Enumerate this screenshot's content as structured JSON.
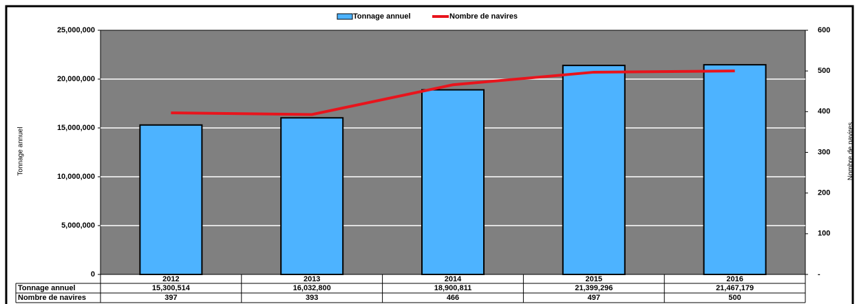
{
  "chart_data": {
    "type": "bar_line",
    "categories": [
      "2012",
      "2013",
      "2014",
      "2015",
      "2016"
    ],
    "series": [
      {
        "name": "Tonnage annuel",
        "color": "#4db3ff",
        "values": [
          15300514,
          16032800,
          18900811,
          21399296,
          21467179
        ],
        "value_labels": [
          "15,300,514",
          "16,032,800",
          "18,900,811",
          "21,399,296",
          "21,467,179"
        ]
      },
      {
        "name": "Nombre de navires",
        "color": "#e8141c",
        "axis": "y2",
        "values": [
          397,
          393,
          466,
          497,
          500
        ]
      }
    ],
    "ylabel": "Tonnage annuel",
    "y2label": "Nombre de navires",
    "ylim": [
      0,
      25000000
    ],
    "yticks": [
      0,
      {
        "value": 5000000,
        "label": "5,000,000"
      },
      {
        "value": 10000000,
        "label": "10,000,000"
      },
      {
        "value": 15000000,
        "label": "15,000,000"
      },
      {
        "value": 20000000,
        "label": "20,000,000"
      },
      {
        "value": 25000000,
        "label": "25,000,000"
      }
    ],
    "y2lim": [
      0,
      600
    ],
    "y2ticks": [
      {
        "value": 0,
        "label": "-"
      },
      100,
      200,
      300,
      400,
      500,
      600
    ],
    "grid": true,
    "legend": "top"
  }
}
